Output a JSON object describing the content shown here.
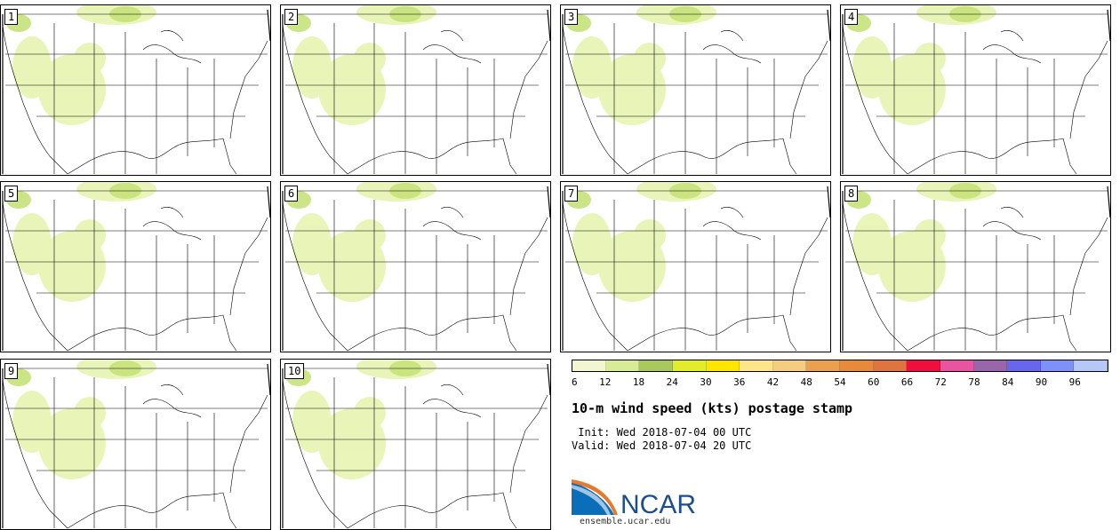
{
  "panels": [
    {
      "label": "1"
    },
    {
      "label": "2"
    },
    {
      "label": "3"
    },
    {
      "label": "4"
    },
    {
      "label": "5"
    },
    {
      "label": "6"
    },
    {
      "label": "7"
    },
    {
      "label": "8"
    },
    {
      "label": "9"
    },
    {
      "label": "10"
    }
  ],
  "colorbar": {
    "colors": [
      "#f2f7d2",
      "#d7ec95",
      "#a9c95e",
      "#e2ec2a",
      "#ffe600",
      "#fde68a",
      "#f4ce80",
      "#eba04f",
      "#e88a3c",
      "#de7540",
      "#ee0f3c",
      "#e8549f",
      "#9966aa",
      "#6666ee",
      "#7d91f9",
      "#b6c8f7"
    ],
    "ticks": [
      "6",
      "12",
      "18",
      "24",
      "30",
      "36",
      "42",
      "48",
      "54",
      "60",
      "66",
      "72",
      "78",
      "84",
      "90",
      "96"
    ]
  },
  "title": "10-m wind speed (kts) postage stamp",
  "init_text": " Init: Wed 2018-07-04 00 UTC",
  "valid_text": "Valid: Wed 2018-07-04 20 UTC",
  "logo_text": "NCAR",
  "footer": "ensemble.ucar.edu"
}
